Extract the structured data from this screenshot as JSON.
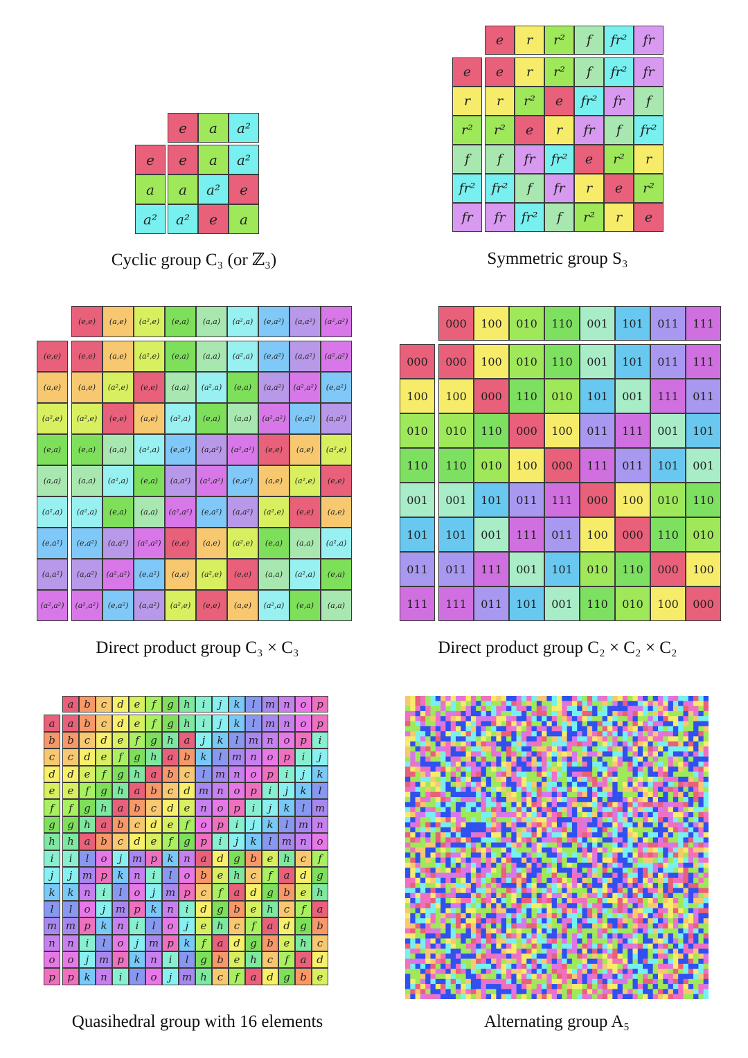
{
  "palette": {
    "c0": "#e8607a",
    "c1": "#f7ec6a",
    "c2": "#9fe85a",
    "c3": "#7fe890",
    "c4": "#8fe8d0",
    "c5": "#6fd6f0",
    "c6": "#a89af0",
    "c7": "#d07af0",
    "orange": "#f8c870",
    "lime": "#c8f060",
    "green": "#7ee05a",
    "mint": "#a8e8b0",
    "aqua": "#78f0f0",
    "sky": "#80c8f8",
    "lav": "#b898e8",
    "mag": "#d878e8",
    "blue": "#3050f0",
    "pink": "#f070c0"
  },
  "captions": {
    "c3": "Cyclic group C₃ (or ℤ₃)",
    "s3": "Symmetric group S₃",
    "c3xc3": "Direct product group C₃ × C₃",
    "c2c2c2": "Direct product group C₂ × C₂ × C₂",
    "quasi": "Quasihedral group with 16 elements",
    "a5": "Alternating group A₅"
  },
  "tables": {
    "c3": {
      "elements": [
        "e",
        "a",
        "a²"
      ],
      "colors": [
        "#e8607a",
        "#9fe85a",
        "#78f0f0"
      ],
      "grid": [
        [
          0,
          1,
          2
        ],
        [
          1,
          2,
          0
        ],
        [
          2,
          0,
          1
        ]
      ]
    },
    "s3": {
      "elements": [
        "e",
        "r",
        "r²",
        "f",
        "fr²",
        "fr"
      ],
      "colors": [
        "#e8607a",
        "#f7ec6a",
        "#9fe85a",
        "#a8e8b0",
        "#78f0f0",
        "#d89af0"
      ],
      "grid": [
        [
          0,
          1,
          2,
          3,
          4,
          5
        ],
        [
          1,
          2,
          0,
          4,
          5,
          3
        ],
        [
          2,
          0,
          1,
          5,
          3,
          4
        ],
        [
          3,
          5,
          4,
          0,
          2,
          1
        ],
        [
          4,
          3,
          5,
          1,
          0,
          2
        ],
        [
          5,
          4,
          3,
          2,
          1,
          0
        ]
      ]
    },
    "c3xc3": {
      "elements": [
        "(e,e)",
        "(a,e)",
        "(a²,e)",
        "(e,a)",
        "(a,a)",
        "(a²,a)",
        "(e,a²)",
        "(a,a²)",
        "(a²,a²)"
      ],
      "colors": [
        "#e8607a",
        "#f8c870",
        "#d8f060",
        "#7ee05a",
        "#a8e8b0",
        "#98f0f0",
        "#80c8f8",
        "#b898e8",
        "#d878e8"
      ],
      "grid": [
        [
          0,
          1,
          2,
          3,
          4,
          5,
          6,
          7,
          8
        ],
        [
          1,
          2,
          0,
          4,
          5,
          3,
          7,
          8,
          6
        ],
        [
          2,
          0,
          1,
          5,
          3,
          4,
          8,
          6,
          7
        ],
        [
          3,
          4,
          5,
          6,
          7,
          8,
          0,
          1,
          2
        ],
        [
          4,
          5,
          3,
          7,
          8,
          6,
          1,
          2,
          0
        ],
        [
          5,
          3,
          4,
          8,
          6,
          7,
          2,
          0,
          1
        ],
        [
          6,
          7,
          8,
          0,
          1,
          2,
          3,
          4,
          5
        ],
        [
          7,
          8,
          6,
          1,
          2,
          0,
          4,
          5,
          3
        ],
        [
          8,
          6,
          7,
          2,
          0,
          1,
          5,
          3,
          4
        ]
      ]
    },
    "c2c2c2": {
      "elements": [
        "000",
        "100",
        "010",
        "110",
        "001",
        "101",
        "011",
        "111"
      ],
      "colors": [
        "#e8607a",
        "#f7ec6a",
        "#9fe85a",
        "#7ee060",
        "#a8ecc8",
        "#68c8f0",
        "#a898f0",
        "#d070e0"
      ],
      "grid": [
        [
          0,
          1,
          2,
          3,
          4,
          5,
          6,
          7
        ],
        [
          1,
          0,
          3,
          2,
          5,
          4,
          7,
          6
        ],
        [
          2,
          3,
          0,
          1,
          6,
          7,
          4,
          5
        ],
        [
          3,
          2,
          1,
          0,
          7,
          6,
          5,
          4
        ],
        [
          4,
          5,
          6,
          7,
          0,
          1,
          2,
          3
        ],
        [
          5,
          4,
          7,
          6,
          1,
          0,
          3,
          2
        ],
        [
          6,
          7,
          4,
          5,
          2,
          3,
          0,
          1
        ],
        [
          7,
          6,
          5,
          4,
          3,
          2,
          1,
          0
        ]
      ]
    },
    "quasi": {
      "elements": [
        "a",
        "b",
        "c",
        "d",
        "e",
        "f",
        "g",
        "h",
        "i",
        "j",
        "k",
        "l",
        "m",
        "n",
        "o",
        "p"
      ],
      "colors": [
        "#e8607a",
        "#f89868",
        "#f8c870",
        "#f8f068",
        "#d8f060",
        "#a8f060",
        "#7ee05a",
        "#7ee8a0",
        "#88f0d0",
        "#88f0f0",
        "#78c8f8",
        "#8898f0",
        "#a888f0",
        "#c880f0",
        "#e878e8",
        "#f070c0"
      ],
      "grid": [
        "abcdefghijklmnop",
        "bcdefghajklmnopi",
        "cdefghabklmnopij",
        "defghabclmnopijk",
        "efghabcdmnopijkl",
        "fghabcdenopijklm",
        "ghabcdefopijklmn",
        "habcdefgpijklmno",
        "ilojmpknadgbehcf",
        "jmpknilobehcfadg",
        "knilojmpcfadgbeh",
        "lojmpknidgbehcfa",
        "mpknilojehcfadgb",
        "nilojmpkfadgbehc",
        "ojmpknilgbehcfad",
        "pknilojmhcfadgbe"
      ]
    },
    "a5": {
      "size": 60,
      "colors": [
        "#e8607a",
        "#f8c870",
        "#f7ec6a",
        "#9fe85a",
        "#78f0f0",
        "#3050f0",
        "#f070c0",
        "#d878e8"
      ]
    }
  }
}
